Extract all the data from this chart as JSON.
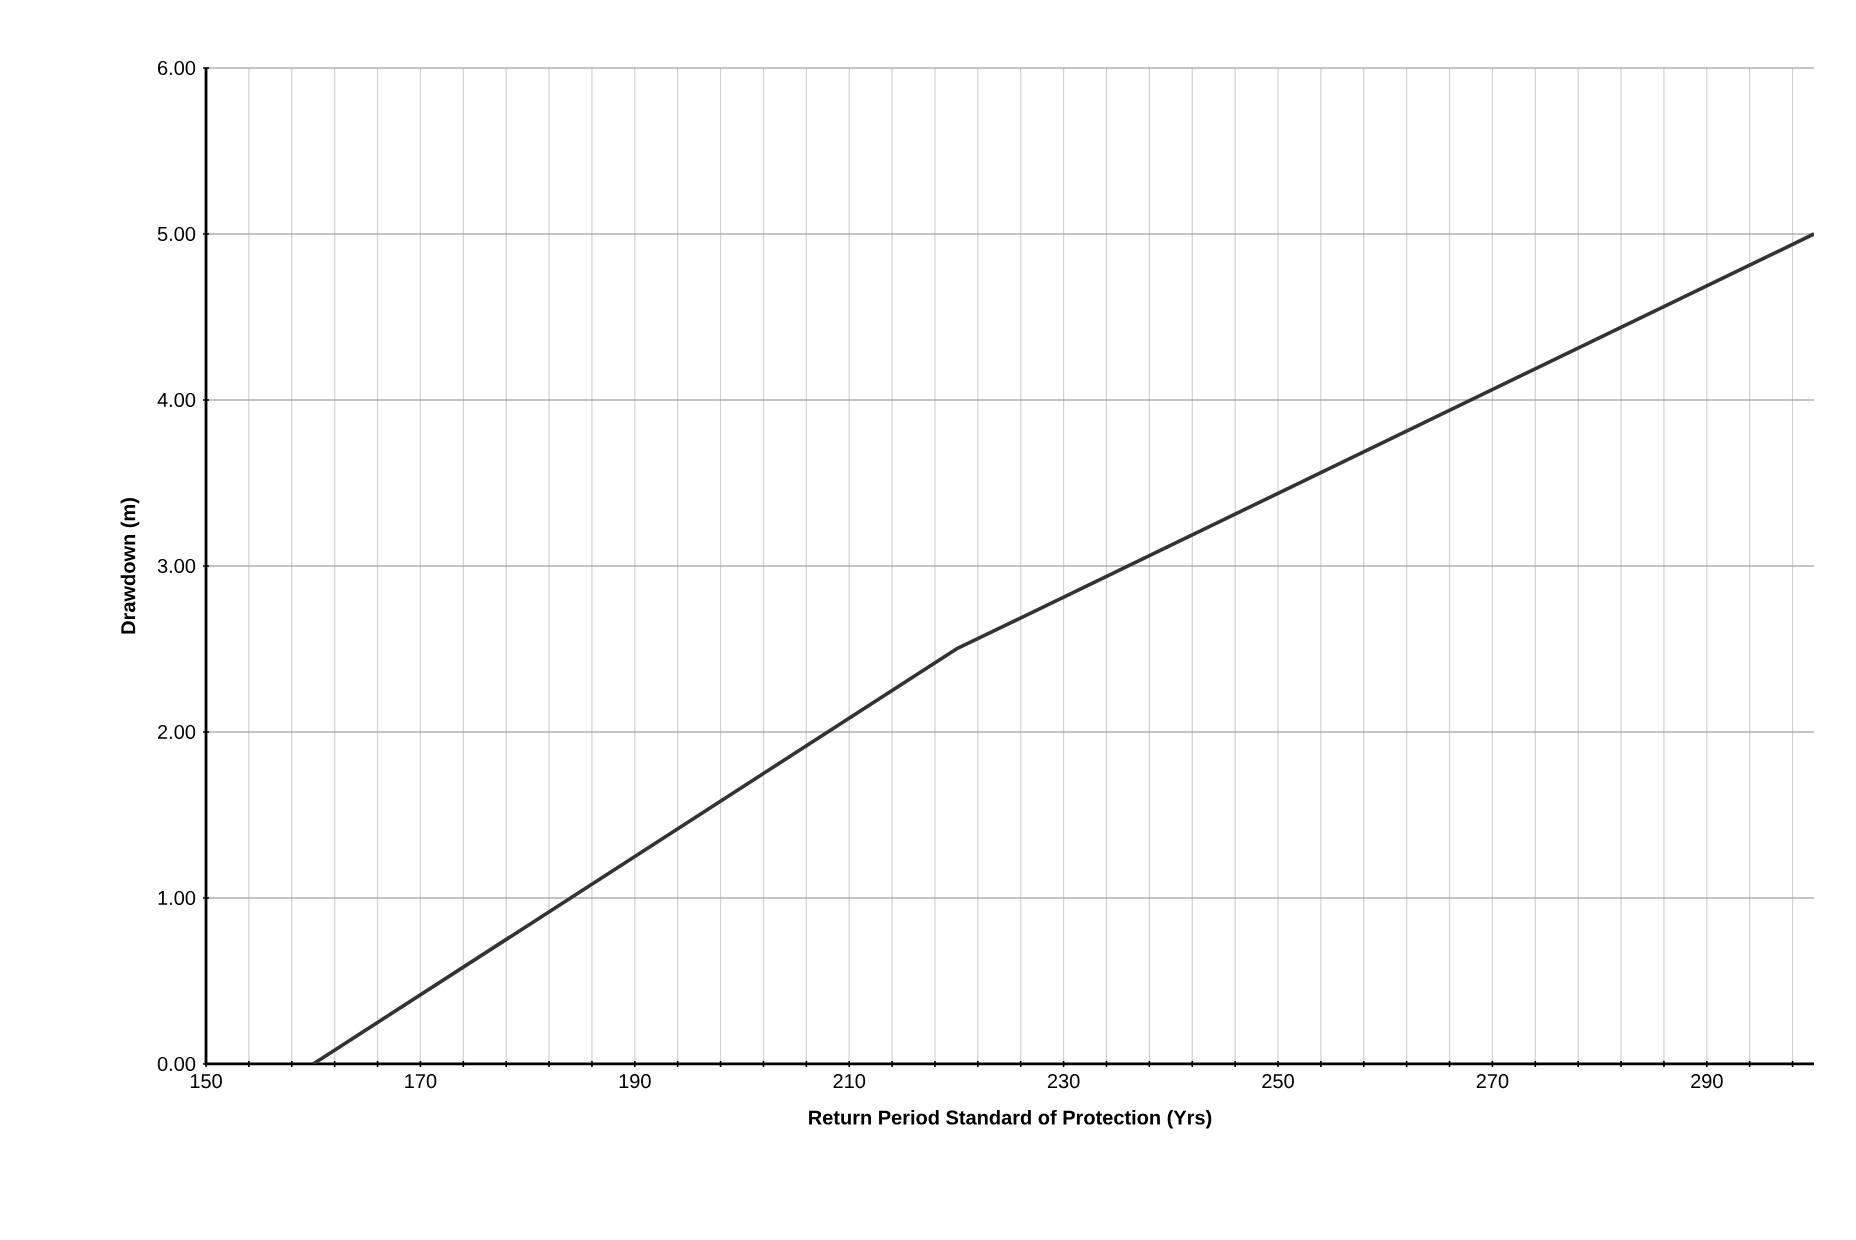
{
  "chart_data": {
    "type": "line",
    "xlabel": "Return Period Standard of Protection (Yrs)",
    "ylabel": "Drawdown (m)",
    "x": [
      160,
      220,
      300
    ],
    "series": [
      {
        "color": "#333333",
        "values": [
          0,
          2.5,
          5
        ]
      }
    ],
    "xlim": [
      150,
      300
    ],
    "ylim": [
      0,
      6
    ],
    "xticks": [
      150,
      {
        "value": 154,
        "label": null
      },
      {
        "value": 158,
        "label": null
      },
      {
        "value": 162,
        "label": null
      },
      {
        "value": 166,
        "label": null
      },
      170,
      {
        "value": 174,
        "label": null
      },
      {
        "value": 178,
        "label": null
      },
      {
        "value": 182,
        "label": null
      },
      {
        "value": 186,
        "label": null
      },
      190,
      {
        "value": 194,
        "label": null
      },
      {
        "value": 198,
        "label": null
      },
      {
        "value": 202,
        "label": null
      },
      {
        "value": 206,
        "label": null
      },
      210,
      {
        "value": 214,
        "label": null
      },
      {
        "value": 218,
        "label": null
      },
      {
        "value": 222,
        "label": null
      },
      {
        "value": 226,
        "label": null
      },
      230,
      {
        "value": 234,
        "label": null
      },
      {
        "value": 238,
        "label": null
      },
      {
        "value": 242,
        "label": null
      },
      {
        "value": 246,
        "label": null
      },
      250,
      {
        "value": 254,
        "label": null
      },
      {
        "value": 258,
        "label": null
      },
      {
        "value": 262,
        "label": null
      },
      {
        "value": 266,
        "label": null
      },
      270,
      {
        "value": 274,
        "label": null
      },
      {
        "value": 278,
        "label": null
      },
      {
        "value": 282,
        "label": null
      },
      {
        "value": 286,
        "label": null
      },
      290,
      {
        "value": 294,
        "label": null
      },
      {
        "value": 298,
        "label": null
      }
    ],
    "yticks": [
      {
        "value": 0,
        "label": "0.00"
      },
      {
        "value": 1,
        "label": "1.00"
      },
      {
        "value": 2,
        "label": "2.00"
      },
      {
        "value": 3,
        "label": "3.00"
      },
      {
        "value": 4,
        "label": "4.00"
      },
      {
        "value": 5,
        "label": "5.00"
      },
      {
        "value": 6,
        "label": "6.00"
      }
    ],
    "grid": true,
    "marker": "none",
    "line_style": "solid"
  }
}
